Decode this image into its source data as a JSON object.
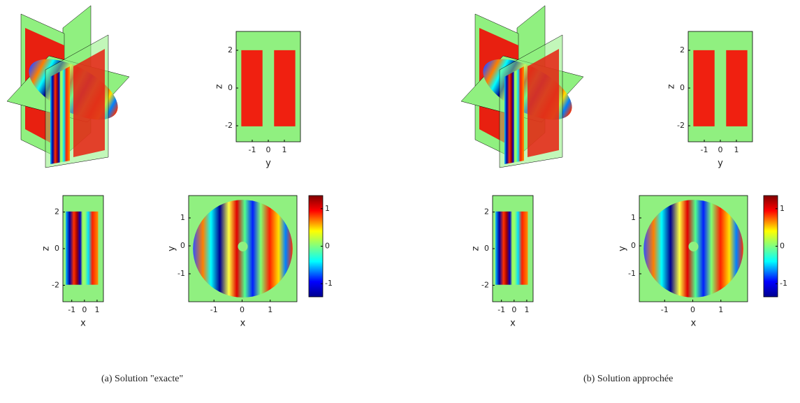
{
  "panels": [
    {
      "caption": "(a) Solution \"exacte\"",
      "plots": [
        {
          "xlabel": "y",
          "ylabel": "z",
          "xlim": [
            -2,
            2
          ],
          "ylim": [
            -2.85,
            3
          ],
          "xticks": [
            -1,
            0,
            1
          ],
          "yticks": [
            -2,
            0,
            2
          ]
        },
        {
          "xlabel": "x",
          "ylabel": "z",
          "xlim": [
            -1.7,
            1.5
          ],
          "ylim": [
            -2.9,
            2.9
          ],
          "xticks": [
            -1,
            0,
            1
          ],
          "yticks": [
            -2,
            0,
            2
          ]
        },
        {
          "xlabel": "x",
          "ylabel": "y",
          "xlim": [
            -1.9,
            1.95
          ],
          "ylim": [
            -2,
            1.8
          ],
          "xticks": [
            -1,
            0,
            1
          ],
          "yticks": [
            -1,
            0,
            1
          ]
        }
      ],
      "colorbar": {
        "lim": [
          -1.35,
          1.35
        ],
        "ticks": [
          -1,
          0,
          1
        ]
      }
    },
    {
      "caption": "(b) Solution approchée",
      "plots": [
        {
          "xlabel": "y",
          "ylabel": "z",
          "xlim": [
            -2,
            2
          ],
          "ylim": [
            -2.85,
            3
          ],
          "xticks": [
            -1,
            0,
            1
          ],
          "yticks": [
            -2,
            0,
            2
          ]
        },
        {
          "xlabel": "x",
          "ylabel": "z",
          "xlim": [
            -1.7,
            1.5
          ],
          "ylim": [
            -2.9,
            2.9
          ],
          "xticks": [
            -1,
            0,
            1
          ],
          "yticks": [
            -2,
            0,
            2
          ]
        },
        {
          "xlabel": "x",
          "ylabel": "y",
          "xlim": [
            -1.9,
            1.95
          ],
          "ylim": [
            -2,
            1.8
          ],
          "xticks": [
            -1,
            0,
            1
          ],
          "yticks": [
            -1,
            0,
            1
          ]
        }
      ],
      "colorbar": {
        "lim": [
          -1.35,
          1.35
        ],
        "ticks": [
          -1,
          0,
          1
        ]
      }
    }
  ]
}
